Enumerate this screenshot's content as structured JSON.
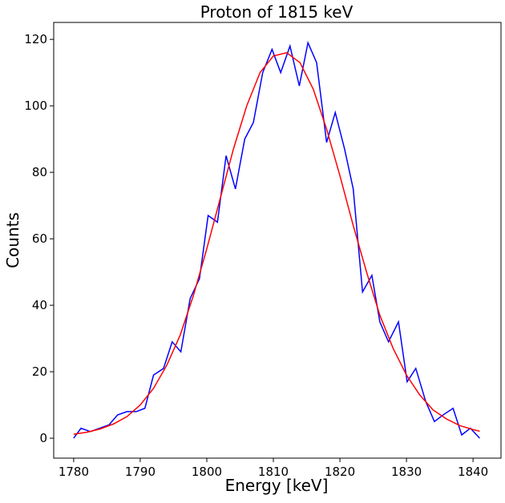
{
  "chart_data": {
    "type": "line",
    "title": "Proton of 1815 keV",
    "x_label": "Energy [keV]",
    "y_label": "Counts",
    "series": [
      {
        "color": "#0000ff",
        "x": [
          1780,
          1781.1,
          1782.5,
          1783.9,
          1785.3,
          1786.6,
          1788,
          1789.4,
          1790.7,
          1792,
          1793.5,
          1794.8,
          1796.1,
          1797.5,
          1798.9,
          1800.2,
          1801.6,
          1802.9,
          1804.3,
          1805.7,
          1807,
          1808.4,
          1809.8,
          1811.1,
          1812.5,
          1813.9,
          1815.2,
          1816.5,
          1818,
          1819.3,
          1820.7,
          1822,
          1823.4,
          1824.8,
          1826,
          1827.3,
          1828.8,
          1830.1,
          1831.4,
          1832.9,
          1834.2,
          1835.5,
          1837,
          1838.3,
          1839.6,
          1841
        ],
        "values": [
          0,
          3,
          2,
          3,
          4,
          7,
          8,
          8,
          9,
          19,
          21,
          29,
          26,
          42,
          48,
          67,
          65,
          85,
          75,
          90,
          95,
          110,
          117,
          110,
          118,
          106,
          119,
          113,
          89,
          98,
          87,
          75,
          44,
          49,
          35,
          29,
          35,
          17,
          21,
          11,
          5,
          7,
          9,
          1,
          3,
          0
        ]
      },
      {
        "color": "#ff0000",
        "x": [
          1780,
          1782,
          1784,
          1786,
          1788,
          1790,
          1792,
          1794,
          1796,
          1798,
          1800,
          1802,
          1804,
          1806,
          1808,
          1810,
          1812,
          1814,
          1816,
          1818,
          1820,
          1822,
          1824,
          1826,
          1828,
          1830,
          1832,
          1834,
          1836,
          1838,
          1840,
          1841
        ],
        "values": [
          1.2,
          1.8,
          2.8,
          4.3,
          6.5,
          10,
          15,
          22,
          31,
          43,
          57,
          72,
          87,
          100,
          110,
          115,
          116,
          113,
          105,
          93,
          79,
          64,
          50,
          37,
          27,
          19,
          13,
          8.5,
          5.8,
          3.8,
          2.6,
          2.1
        ]
      }
    ],
    "xlim": [
      1777,
      1844.2
    ],
    "ylim": [
      -6,
      125.1
    ],
    "xticks": [
      1780,
      1790,
      1800,
      1810,
      1820,
      1830,
      1840
    ],
    "yticks": [
      0,
      20,
      40,
      60,
      80,
      100,
      120
    ]
  }
}
